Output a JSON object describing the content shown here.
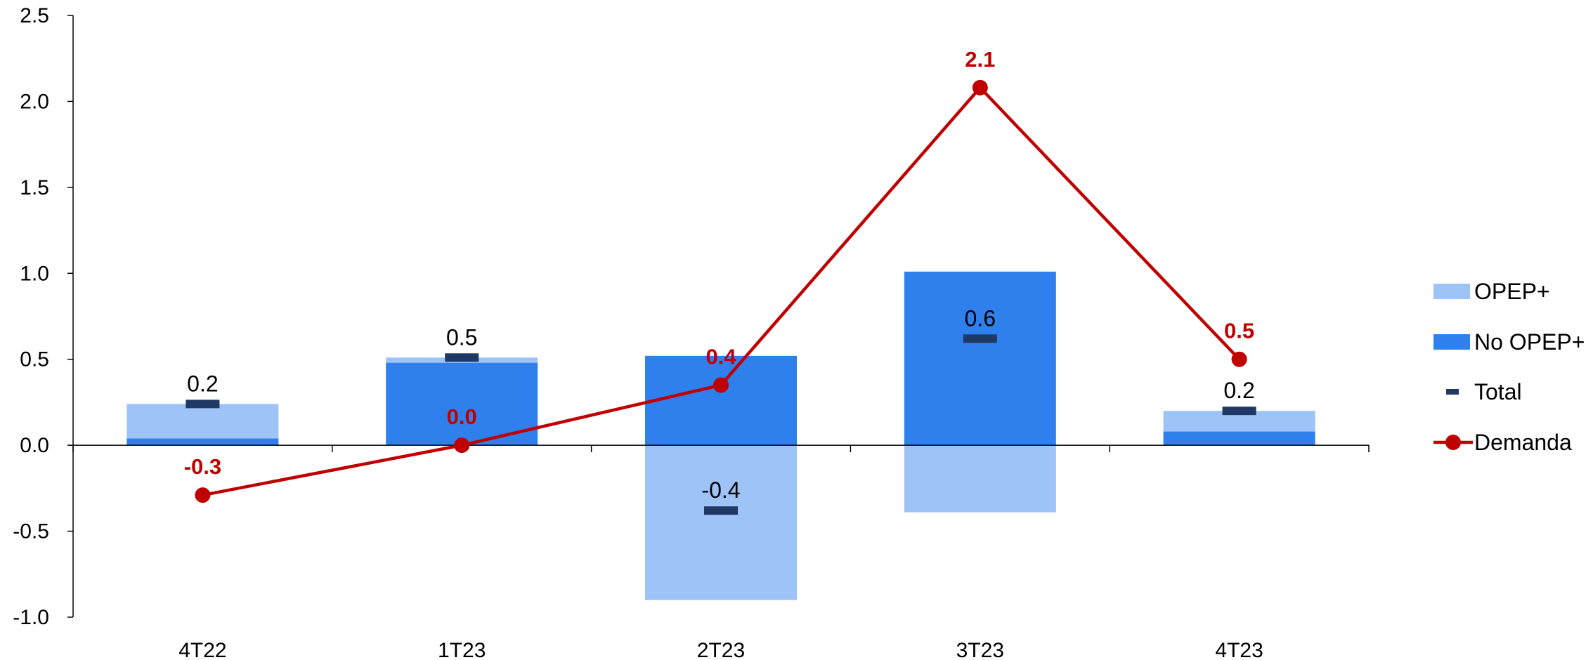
{
  "chart_data": {
    "type": "bar",
    "categories": [
      "4T22",
      "1T23",
      "2T23",
      "3T23",
      "4T23"
    ],
    "series": [
      {
        "name": "OPEP+",
        "kind": "stacked-bar",
        "color": "#9DC3F7",
        "values": [
          0.2,
          0.03,
          -0.9,
          -0.39,
          0.12
        ]
      },
      {
        "name": "No OPEP+",
        "kind": "stacked-bar",
        "color": "#2F80ED",
        "values": [
          0.04,
          0.48,
          0.52,
          1.01,
          0.08
        ]
      },
      {
        "name": "Total",
        "kind": "marker",
        "color": "#1F3864",
        "values": [
          0.24,
          0.51,
          -0.38,
          0.62,
          0.2
        ]
      },
      {
        "name": "Demanda",
        "kind": "line",
        "color": "#C00000",
        "values": [
          -0.29,
          0.0,
          0.35,
          2.08,
          0.5
        ]
      }
    ],
    "total_labels": [
      "0.2",
      "0.5",
      "-0.4",
      "0.6",
      "0.2"
    ],
    "demand_labels": [
      "-0.3",
      "0.0",
      "0.4",
      "2.1",
      "0.5"
    ],
    "ylim": [
      -1.0,
      2.5
    ],
    "yticks": [
      "-1.0",
      "-0.5",
      "0.0",
      "0.5",
      "1.0",
      "1.5",
      "2.0",
      "2.5"
    ],
    "xlabel": "",
    "ylabel": "",
    "title": "",
    "grid": false,
    "legend_position": "right"
  }
}
